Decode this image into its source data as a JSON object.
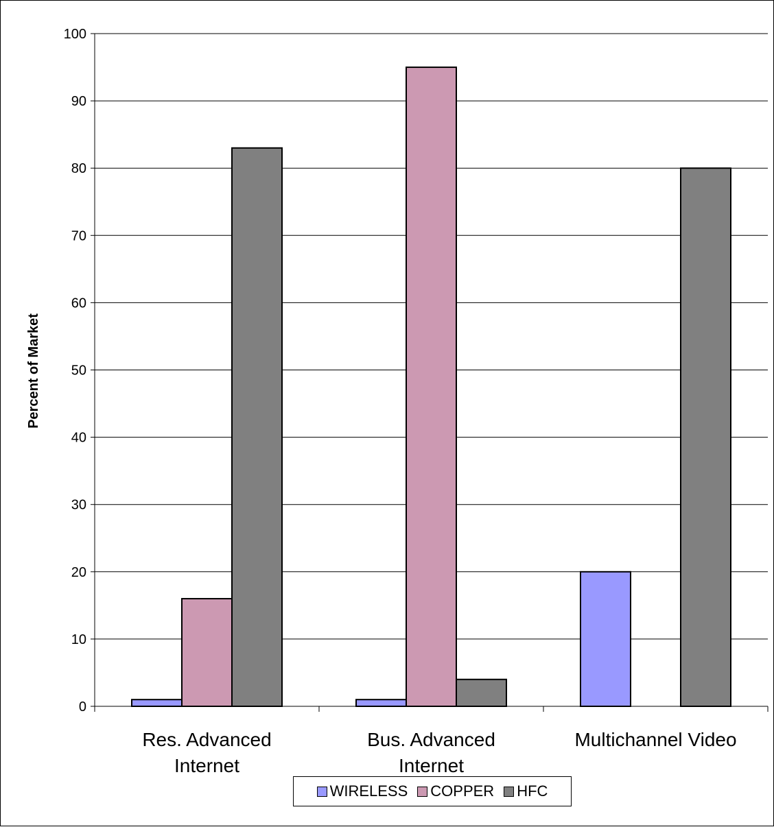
{
  "chart_data": {
    "type": "bar",
    "ylabel": "Percent of Market",
    "xlabel": "",
    "ylim": [
      0,
      100
    ],
    "yticks": [
      0,
      10,
      20,
      30,
      40,
      50,
      60,
      70,
      80,
      90,
      100
    ],
    "grid": true,
    "legend_position": "bottom",
    "categories": [
      [
        "Res. Advanced",
        "Internet"
      ],
      [
        "Bus. Advanced",
        "Internet"
      ],
      [
        "Multichannel Video"
      ]
    ],
    "series": [
      {
        "name": "WIRELESS",
        "color": "#9999ff",
        "values": [
          1,
          1,
          20
        ]
      },
      {
        "name": "COPPER",
        "color": "#cc99b2",
        "values": [
          16,
          95,
          null
        ]
      },
      {
        "name": "HFC",
        "color": "#808080",
        "values": [
          83,
          4,
          80
        ]
      }
    ]
  }
}
